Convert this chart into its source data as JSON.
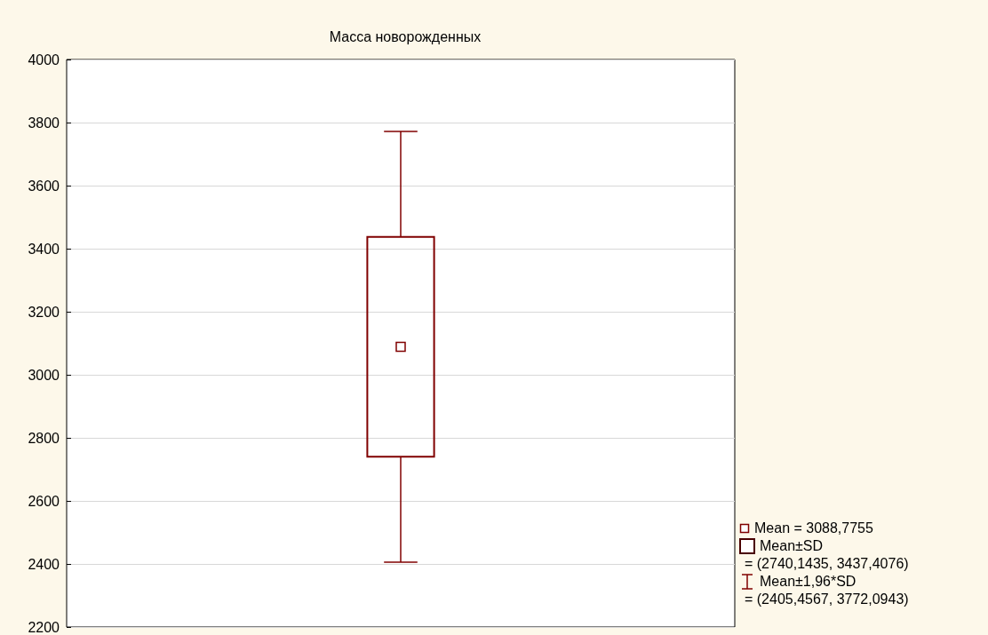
{
  "chart_data": {
    "type": "box",
    "title": "Масса новорожденных",
    "categories": [
      null
    ],
    "boxes": [
      {
        "low": 2405.4567,
        "q1": 2740.1435,
        "median": 3088.7755,
        "q3": 3437.4076,
        "high": 3772.0943
      }
    ],
    "color": "#800000",
    "ylim": [
      2200,
      4000
    ],
    "yticks": [
      2200,
      2400,
      2600,
      2800,
      3000,
      3200,
      3400,
      3600,
      3800,
      4000
    ],
    "grid": "y",
    "tick_labels": "y",
    "annotations": [
      "Mean = 3088,7755",
      "Mean±SD",
      "= (2740,1435, 3437,4076)",
      "Mean±1,96*SD",
      "= (2405,4567, 3772,0943)"
    ]
  }
}
